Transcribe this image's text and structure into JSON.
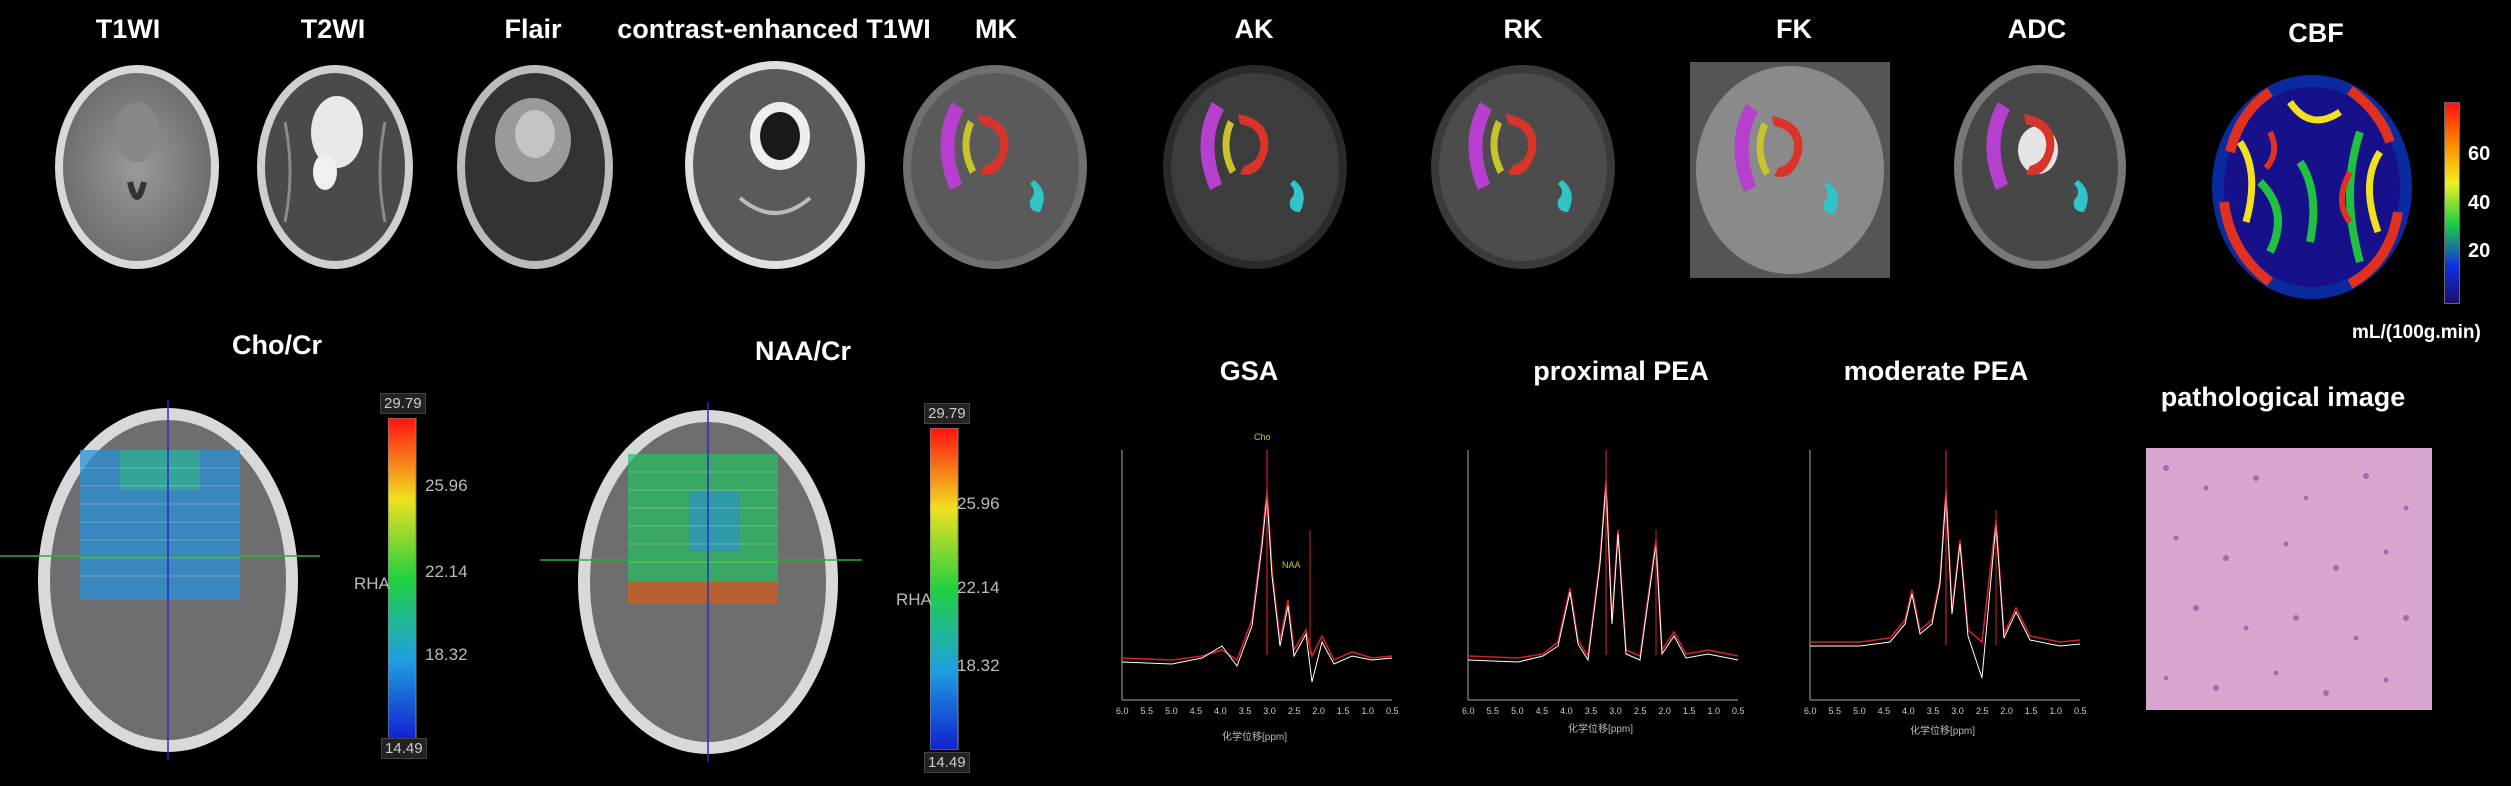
{
  "top_labels": {
    "t1wi": "T1WI",
    "t2wi": "T2WI",
    "flair": "Flair",
    "ce_t1wi": "contrast-enhanced T1WI",
    "mk": "MK",
    "ak": "AK",
    "rk": "RK",
    "fk": "FK",
    "adc": "ADC",
    "cbf": "CBF"
  },
  "cbf_colorbar": {
    "ticks": [
      "60",
      "40",
      "20"
    ],
    "unit": "mL/(100g.min)"
  },
  "bottom_labels": {
    "cho_cr": "Cho/Cr",
    "naa_cr": "NAA/Cr",
    "gsa": "GSA",
    "proximal_pea": "proximal PEA",
    "moderate_pea": "moderate PEA",
    "pathology": "pathological image"
  },
  "cho_colorbar": {
    "max": "29.79",
    "mid1": "25.96",
    "mid2": "22.14",
    "mid3": "18.32",
    "min": "14.49",
    "side": "RHA"
  },
  "naa_colorbar": {
    "max": "29.79",
    "mid1": "25.96",
    "mid2": "22.14",
    "mid3": "18.32",
    "min": "14.49",
    "side": "RHA"
  },
  "spectra_axis": {
    "xlabel": "化学位移[ppm]",
    "x_ticks": [
      "6.0",
      "5.5",
      "5.0",
      "4.5",
      "4.0",
      "3.5",
      "3.0",
      "2.5",
      "2.0",
      "1.5",
      "1.0",
      "0.5"
    ]
  },
  "colors": {
    "background": "#000000",
    "spectrum_fit": "#cc2222",
    "spectrum_raw": "#ffffff",
    "peak_label": "#d6c02a",
    "roi_magenta": "#b63fd0",
    "roi_yellow": "#c8c32a",
    "roi_red": "#d8342a",
    "roi_cyan": "#2fc4c8",
    "pathology_pink": "#d9a6cf"
  }
}
